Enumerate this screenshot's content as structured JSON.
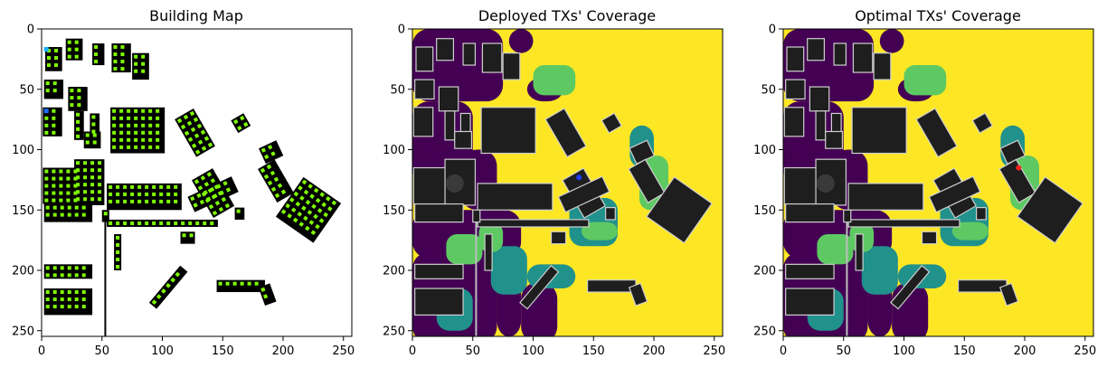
{
  "panels": [
    {
      "title": "Building Map",
      "x_ticks": [
        "0",
        "50",
        "100",
        "150",
        "200",
        "250"
      ],
      "y_ticks": [
        "0",
        "50",
        "100",
        "150",
        "200",
        "250"
      ],
      "background": "#ffffff"
    },
    {
      "title": "Deployed TXs' Coverage",
      "x_ticks": [
        "0",
        "50",
        "100",
        "150",
        "200",
        "250"
      ],
      "y_ticks": [
        "0",
        "50",
        "100",
        "150",
        "200",
        "250"
      ],
      "background": "#fde725"
    },
    {
      "title": "Optimal TXs' Coverage",
      "x_ticks": [
        "0",
        "50",
        "100",
        "150",
        "200",
        "250"
      ],
      "y_ticks": [
        "0",
        "50",
        "100",
        "150",
        "200",
        "250"
      ],
      "background": "#fde725"
    }
  ],
  "colors": {
    "building": "#000000",
    "marker_green": "#7fff00",
    "coverage_high": "#fde725",
    "coverage_mid": "#5ec962",
    "coverage_low": "#21918c",
    "coverage_none": "#440154",
    "building_dark": "#1e1e1e",
    "tx_deployed": "#1f3cff",
    "tx_optimal": "#ff2020"
  },
  "chart_data": [
    {
      "type": "heatmap",
      "title": "Building Map",
      "xlim": [
        0,
        255
      ],
      "ylim": [
        255,
        0
      ],
      "x_ticks": [
        0,
        50,
        100,
        150,
        200,
        250
      ],
      "y_ticks": [
        0,
        50,
        100,
        150,
        200,
        250
      ]
    },
    {
      "type": "heatmap",
      "title": "Deployed TXs' Coverage",
      "xlim": [
        0,
        255
      ],
      "ylim": [
        255,
        0
      ],
      "x_ticks": [
        0,
        50,
        100,
        150,
        200,
        250
      ],
      "y_ticks": [
        0,
        50,
        100,
        150,
        200,
        250
      ],
      "tx_markers": [
        {
          "x": 138,
          "y": 123
        }
      ]
    },
    {
      "type": "heatmap",
      "title": "Optimal TXs' Coverage",
      "xlim": [
        0,
        255
      ],
      "ylim": [
        255,
        0
      ],
      "x_ticks": [
        0,
        50,
        100,
        150,
        200,
        250
      ],
      "y_ticks": [
        0,
        50,
        100,
        150,
        200,
        250
      ],
      "tx_markers": [
        {
          "x": 195,
          "y": 115
        }
      ]
    }
  ]
}
